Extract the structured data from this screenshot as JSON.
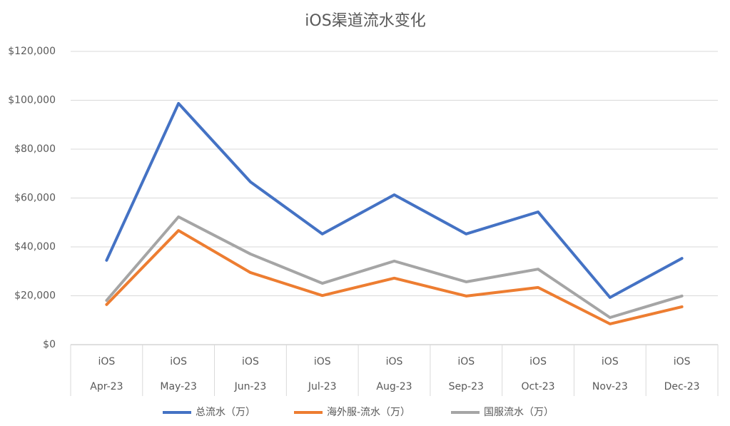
{
  "chart_data": {
    "type": "line",
    "title": "iOS渠道流水变化",
    "categories": [
      "Apr-23",
      "May-23",
      "Jun-23",
      "Jul-23",
      "Aug-23",
      "Sep-23",
      "Oct-23",
      "Nov-23",
      "Dec-23"
    ],
    "category_groups": [
      "iOS",
      "iOS",
      "iOS",
      "iOS",
      "iOS",
      "iOS",
      "iOS",
      "iOS",
      "iOS"
    ],
    "series": [
      {
        "name": "总流水（万）",
        "color": "#4472c4",
        "values": [
          34500,
          98700,
          66600,
          45300,
          61300,
          45300,
          54300,
          19300,
          35300
        ]
      },
      {
        "name": "海外服-流水（万）",
        "color": "#ed7d31",
        "values": [
          16400,
          46700,
          29500,
          20100,
          27200,
          19900,
          23400,
          8500,
          15500
        ]
      },
      {
        "name": "国服流水（万）",
        "color": "#a5a5a5",
        "values": [
          18100,
          52300,
          37100,
          25100,
          34200,
          25700,
          30900,
          11100,
          19900
        ]
      }
    ],
    "ylim": [
      0,
      120000
    ],
    "yticks": [
      {
        "value": 0,
        "label": "$0"
      },
      {
        "value": 20000,
        "label": "$20,000"
      },
      {
        "value": 40000,
        "label": "$40,000"
      },
      {
        "value": 60000,
        "label": "$60,000"
      },
      {
        "value": 80000,
        "label": "$80,000"
      },
      {
        "value": 100000,
        "label": "$100,000"
      },
      {
        "value": 120000,
        "label": "$120,000"
      }
    ],
    "grid": true,
    "legend": "bottom"
  }
}
